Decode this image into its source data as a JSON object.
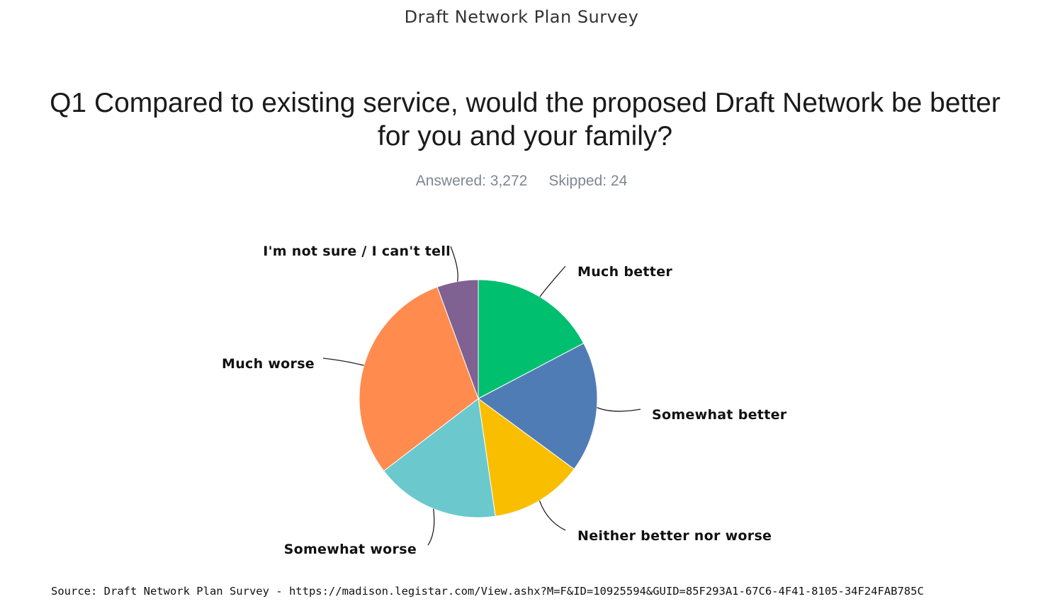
{
  "survey_title": "Draft Network Plan Survey",
  "question": {
    "title": "Q1 Compared to existing service, would the proposed Draft Network be better for you and your family?"
  },
  "stats": {
    "answered": "Answered: 3,272",
    "skipped": "Skipped: 24"
  },
  "chart_data": {
    "type": "pie",
    "title": "Q1 Compared to existing service, would the proposed Draft Network be better for you and your family?",
    "categories": [
      "Much better",
      "Somewhat better",
      "Neither better nor worse",
      "Somewhat worse",
      "Much worse",
      "I'm not sure / I can't tell"
    ],
    "values": [
      17.3,
      17.8,
      12.6,
      16.9,
      29.8,
      5.6
    ],
    "colors": [
      "#00bf6f",
      "#507cb6",
      "#f9be00",
      "#6bc8cd",
      "#ff8b4f",
      "#7f6192"
    ],
    "legend": "none"
  },
  "source": "Source: Draft Network Plan Survey - https://madison.legistar.com/View.ashx?M=F&ID=10925594&GUID=85F293A1-67C6-4F41-8105-34F24FAB785C"
}
